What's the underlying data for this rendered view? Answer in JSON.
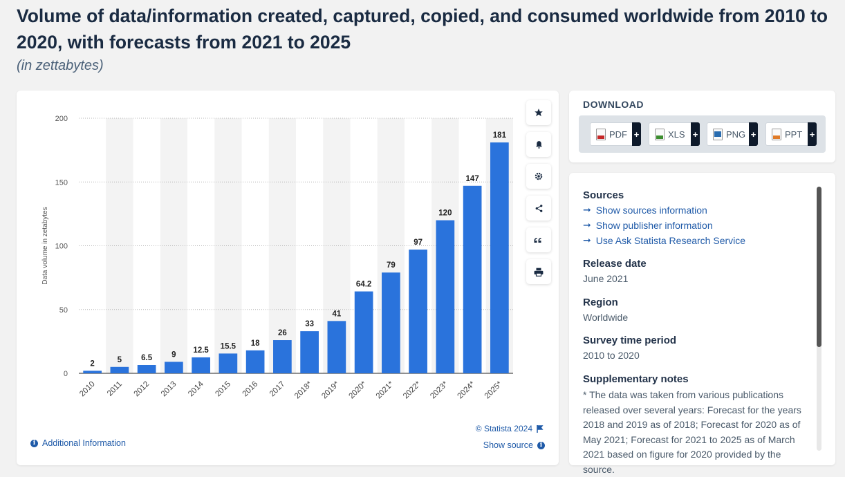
{
  "page": {
    "title": "Volume of data/information created, captured, copied, and consumed worldwide from 2010 to 2020, with forecasts from 2021 to 2025",
    "subtitle": "(in zettabytes)"
  },
  "chart_data": {
    "type": "bar",
    "title": "Volume of data/information created, captured, copied, and consumed worldwide from 2010 to 2020, with forecasts from 2021 to 2025",
    "ylabel": "Data volume in zetabytes",
    "xlabel": "",
    "ylim": [
      0,
      200
    ],
    "yticks": [
      0,
      50,
      100,
      150,
      200
    ],
    "categories": [
      "2010",
      "2011",
      "2012",
      "2013",
      "2014",
      "2015",
      "2016",
      "2017",
      "2018*",
      "2019*",
      "2020*",
      "2021*",
      "2022*",
      "2023*",
      "2024*",
      "2025*"
    ],
    "values": [
      2,
      5,
      6.5,
      9,
      12.5,
      15.5,
      18,
      26,
      33,
      41,
      64.2,
      79,
      97,
      120,
      147,
      181
    ],
    "value_labels": [
      "2",
      "5",
      "6.5",
      "9",
      "12.5",
      "15.5",
      "18",
      "26",
      "33",
      "41",
      "64.2",
      "79",
      "97",
      "120",
      "147",
      "181"
    ],
    "bar_color": "#2a73dc",
    "grid": true
  },
  "chart_footer": {
    "copyright": "© Statista 2024",
    "show_source": "Show source",
    "additional_info": "Additional Information"
  },
  "toolbar": {
    "icons": [
      "star-icon",
      "bell-icon",
      "gear-icon",
      "share-icon",
      "quote-icon",
      "print-icon"
    ]
  },
  "download": {
    "heading": "DOWNLOAD",
    "buttons": [
      {
        "label": "PDF",
        "color": "#c62828"
      },
      {
        "label": "XLS",
        "color": "#3c8d2f"
      },
      {
        "label": "PNG",
        "color": "#2a6db0"
      },
      {
        "label": "PPT",
        "color": "#e07b28"
      }
    ],
    "plus": "+"
  },
  "info": {
    "sources_heading": "Sources",
    "links": [
      "Show sources information",
      "Show publisher information",
      "Use Ask Statista Research Service"
    ],
    "release_heading": "Release date",
    "release_value": "June 2021",
    "region_heading": "Region",
    "region_value": "Worldwide",
    "survey_heading": "Survey time period",
    "survey_value": "2010 to 2020",
    "notes_heading": "Supplementary notes",
    "notes_text": "* The data was taken from various publications released over several years: Forecast for the years 2018 and 2019 as of 2018; Forecast for 2020 as of May 2021; Forecast for 2021 to 2025 as of March 2021 based on figure for 2020 provided by the source."
  },
  "colors": {
    "accent": "#1f5aa8",
    "bar": "#2a73dc"
  }
}
